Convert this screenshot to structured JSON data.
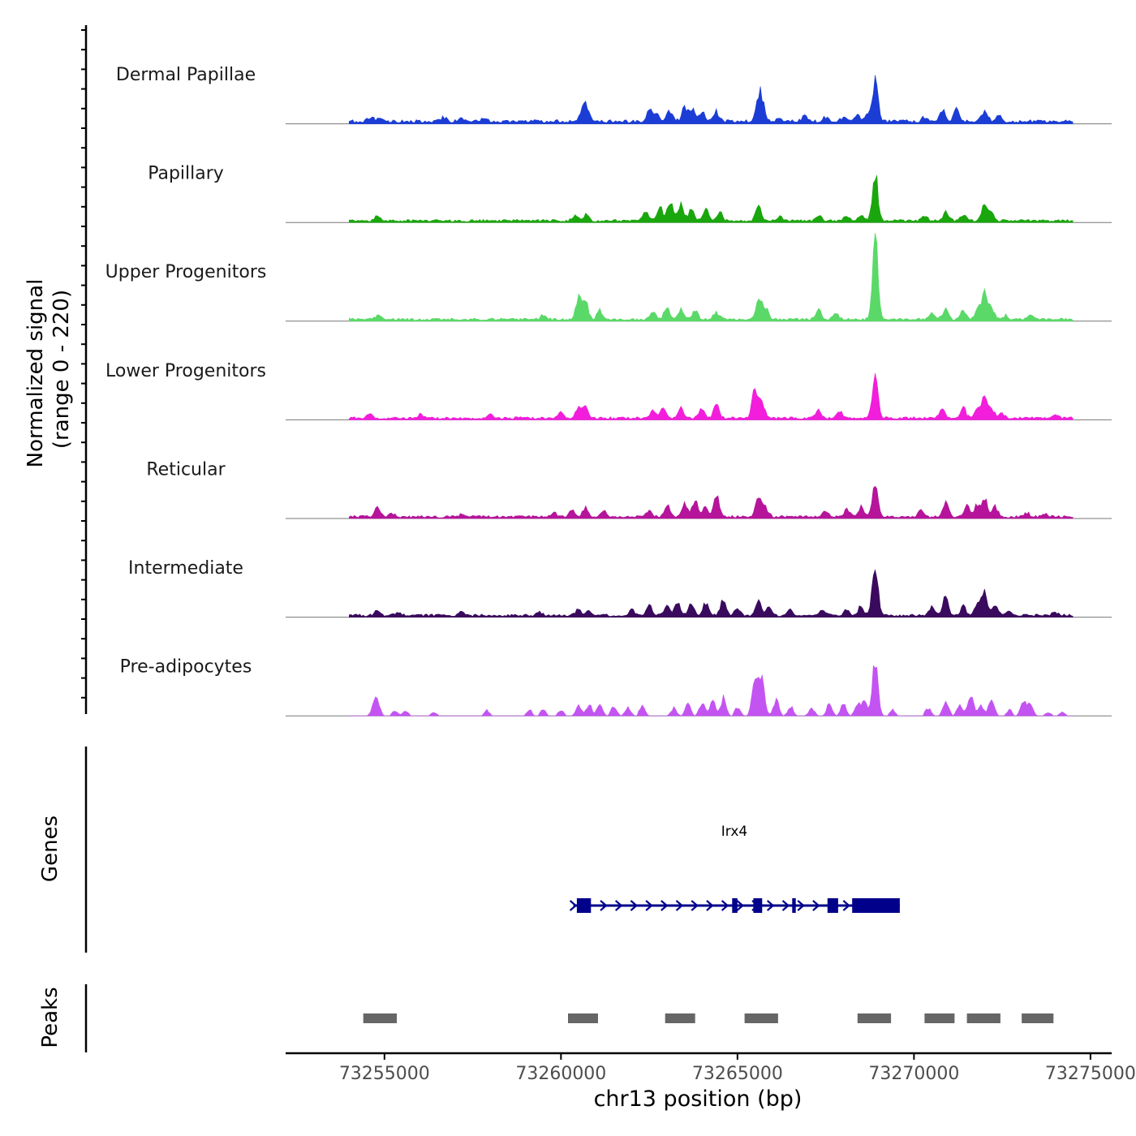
{
  "chart_data": {
    "type": "area",
    "title": "",
    "xlabel": "chr13 position (bp)",
    "ylabel": [
      "Normalized signal",
      "(range 0 - 220)"
    ],
    "ylim": [
      0,
      220
    ],
    "xlim": [
      73252200,
      73275600
    ],
    "x_ticks": [
      73255000,
      73260000,
      73265000,
      73270000,
      73275000
    ],
    "x_tick_labels": [
      "73255000",
      "73260000",
      "73265000",
      "73270000",
      "73275000"
    ],
    "signal_start": 73254000,
    "signal_end": 73274500,
    "bin_bp": 100,
    "tracks": [
      {
        "name": "Dermal Papillae",
        "color": "#1b3dd6",
        "background": 4,
        "peaks": [
          [
            73254600,
            6
          ],
          [
            73254900,
            4
          ],
          [
            73256700,
            6
          ],
          [
            73257200,
            4
          ],
          [
            73257800,
            5
          ],
          [
            73260600,
            10
          ],
          [
            73260700,
            15
          ],
          [
            73260800,
            8
          ],
          [
            73262500,
            14
          ],
          [
            73262700,
            10
          ],
          [
            73263100,
            15
          ],
          [
            73263500,
            18
          ],
          [
            73263700,
            16
          ],
          [
            73264000,
            13
          ],
          [
            73264400,
            12
          ],
          [
            73265600,
            28
          ],
          [
            73265700,
            20
          ],
          [
            73266200,
            5
          ],
          [
            73266900,
            8
          ],
          [
            73267500,
            5
          ],
          [
            73268000,
            6
          ],
          [
            73268400,
            9
          ],
          [
            73268700,
            10
          ],
          [
            73268900,
            55
          ],
          [
            73270300,
            5
          ],
          [
            73270800,
            16
          ],
          [
            73271200,
            15
          ],
          [
            73272000,
            16
          ],
          [
            73272400,
            8
          ]
        ]
      },
      {
        "name": "Papillary",
        "color": "#1aa60d",
        "background": 3,
        "peaks": [
          [
            73254800,
            5
          ],
          [
            73260400,
            7
          ],
          [
            73260700,
            8
          ],
          [
            73262400,
            12
          ],
          [
            73262800,
            18
          ],
          [
            73263100,
            25
          ],
          [
            73263400,
            20
          ],
          [
            73263700,
            15
          ],
          [
            73264100,
            14
          ],
          [
            73264500,
            10
          ],
          [
            73265600,
            18
          ],
          [
            73266200,
            5
          ],
          [
            73267300,
            6
          ],
          [
            73268100,
            7
          ],
          [
            73268500,
            9
          ],
          [
            73268900,
            62
          ],
          [
            73270300,
            6
          ],
          [
            73270900,
            12
          ],
          [
            73271400,
            8
          ],
          [
            73272000,
            20
          ],
          [
            73272200,
            10
          ]
        ]
      },
      {
        "name": "Upper Progenitors",
        "color": "#5ad968",
        "background": 3,
        "peaks": [
          [
            73254800,
            6
          ],
          [
            73259500,
            5
          ],
          [
            73260500,
            25
          ],
          [
            73260700,
            22
          ],
          [
            73261100,
            12
          ],
          [
            73262600,
            8
          ],
          [
            73263000,
            14
          ],
          [
            73263400,
            14
          ],
          [
            73263800,
            12
          ],
          [
            73264400,
            10
          ],
          [
            73265600,
            30
          ],
          [
            73265800,
            15
          ],
          [
            73267300,
            12
          ],
          [
            73267800,
            8
          ],
          [
            73268900,
            110
          ],
          [
            73270500,
            8
          ],
          [
            73270900,
            15
          ],
          [
            73271400,
            12
          ],
          [
            73271800,
            14
          ],
          [
            73272000,
            35
          ],
          [
            73272200,
            15
          ],
          [
            73272600,
            5
          ],
          [
            73273300,
            6
          ]
        ]
      },
      {
        "name": "Lower Progenitors",
        "color": "#f21edb",
        "background": 3,
        "peaks": [
          [
            73254600,
            5
          ],
          [
            73256000,
            4
          ],
          [
            73258000,
            4
          ],
          [
            73260000,
            8
          ],
          [
            73260500,
            15
          ],
          [
            73260700,
            12
          ],
          [
            73262600,
            10
          ],
          [
            73262900,
            14
          ],
          [
            73263400,
            12
          ],
          [
            73264000,
            12
          ],
          [
            73264400,
            18
          ],
          [
            73265500,
            42
          ],
          [
            73265700,
            20
          ],
          [
            73267300,
            10
          ],
          [
            73267900,
            8
          ],
          [
            73268900,
            58
          ],
          [
            73270800,
            10
          ],
          [
            73271400,
            12
          ],
          [
            73271800,
            14
          ],
          [
            73272000,
            25
          ],
          [
            73272200,
            12
          ],
          [
            73272500,
            6
          ],
          [
            73274000,
            4
          ]
        ]
      },
      {
        "name": "Reticular",
        "color": "#b5149b",
        "background": 3,
        "peaks": [
          [
            73254800,
            12
          ],
          [
            73255200,
            5
          ],
          [
            73257200,
            4
          ],
          [
            73259800,
            6
          ],
          [
            73260300,
            8
          ],
          [
            73260700,
            12
          ],
          [
            73261200,
            8
          ],
          [
            73262500,
            8
          ],
          [
            73263000,
            14
          ],
          [
            73263500,
            18
          ],
          [
            73263800,
            20
          ],
          [
            73264100,
            12
          ],
          [
            73264400,
            27
          ],
          [
            73265600,
            28
          ],
          [
            73265800,
            12
          ],
          [
            73267500,
            8
          ],
          [
            73268100,
            9
          ],
          [
            73268500,
            12
          ],
          [
            73268900,
            45
          ],
          [
            73270200,
            8
          ],
          [
            73270900,
            18
          ],
          [
            73271500,
            12
          ],
          [
            73271800,
            15
          ],
          [
            73272000,
            22
          ],
          [
            73272300,
            12
          ],
          [
            73273200,
            5
          ],
          [
            73273700,
            4
          ]
        ]
      },
      {
        "name": "Intermediate",
        "color": "#3a0a5e",
        "background": 3,
        "peaks": [
          [
            73254800,
            6
          ],
          [
            73255400,
            4
          ],
          [
            73257200,
            5
          ],
          [
            73259400,
            5
          ],
          [
            73260500,
            8
          ],
          [
            73260800,
            6
          ],
          [
            73262000,
            8
          ],
          [
            73262500,
            12
          ],
          [
            73263000,
            14
          ],
          [
            73263300,
            15
          ],
          [
            73263700,
            16
          ],
          [
            73264100,
            16
          ],
          [
            73264600,
            20
          ],
          [
            73265000,
            10
          ],
          [
            73265600,
            18
          ],
          [
            73265900,
            10
          ],
          [
            73266500,
            7
          ],
          [
            73267400,
            8
          ],
          [
            73268100,
            7
          ],
          [
            73268500,
            12
          ],
          [
            73268900,
            65
          ],
          [
            73270500,
            12
          ],
          [
            73270900,
            25
          ],
          [
            73271400,
            12
          ],
          [
            73271800,
            15
          ],
          [
            73272000,
            32
          ],
          [
            73272300,
            12
          ],
          [
            73272700,
            5
          ],
          [
            73274000,
            4
          ]
        ]
      },
      {
        "name": "Pre-adipocytes",
        "color": "#c454f2",
        "background": 0,
        "peaks": [
          [
            73254800,
            18
          ],
          [
            73254700,
            10
          ],
          [
            73255300,
            6
          ],
          [
            73255600,
            6
          ],
          [
            73256400,
            5
          ],
          [
            73257900,
            7
          ],
          [
            73259100,
            8
          ],
          [
            73259500,
            8
          ],
          [
            73260000,
            7
          ],
          [
            73260500,
            12
          ],
          [
            73260800,
            15
          ],
          [
            73261100,
            14
          ],
          [
            73261500,
            12
          ],
          [
            73261900,
            10
          ],
          [
            73262300,
            12
          ],
          [
            73263200,
            10
          ],
          [
            73263600,
            14
          ],
          [
            73264000,
            16
          ],
          [
            73264300,
            20
          ],
          [
            73264600,
            22
          ],
          [
            73265000,
            10
          ],
          [
            73265500,
            58
          ],
          [
            73265700,
            45
          ],
          [
            73266100,
            20
          ],
          [
            73266500,
            12
          ],
          [
            73267100,
            10
          ],
          [
            73267600,
            14
          ],
          [
            73268000,
            16
          ],
          [
            73268400,
            16
          ],
          [
            73268600,
            18
          ],
          [
            73268900,
            70
          ],
          [
            73269400,
            8
          ],
          [
            73270400,
            10
          ],
          [
            73270900,
            22
          ],
          [
            73271300,
            14
          ],
          [
            73271600,
            30
          ],
          [
            73271900,
            14
          ],
          [
            73272200,
            22
          ],
          [
            73272700,
            8
          ],
          [
            73273100,
            18
          ],
          [
            73273300,
            14
          ],
          [
            73273800,
            5
          ],
          [
            73274200,
            5
          ]
        ]
      }
    ],
    "genes_track": {
      "label": "Genes",
      "color": "#00008b",
      "gene": {
        "name": "Irx4",
        "start": 73260350,
        "end": 73269600,
        "strand": "+",
        "exons": [
          [
            73260450,
            73260850
          ],
          [
            73264850,
            73265000
          ],
          [
            73265450,
            73265700
          ],
          [
            73266550,
            73266650
          ],
          [
            73267550,
            73267850
          ],
          [
            73268250,
            73269600
          ]
        ]
      }
    },
    "peaks_track": {
      "label": "Peaks",
      "color": "#666666",
      "regions": [
        [
          73254400,
          73255350
        ],
        [
          73260200,
          73261050
        ],
        [
          73262950,
          73263800
        ],
        [
          73265200,
          73266150
        ],
        [
          73268400,
          73269350
        ],
        [
          73270300,
          73271150
        ],
        [
          73271500,
          73272450
        ],
        [
          73273050,
          73273950
        ]
      ]
    }
  }
}
